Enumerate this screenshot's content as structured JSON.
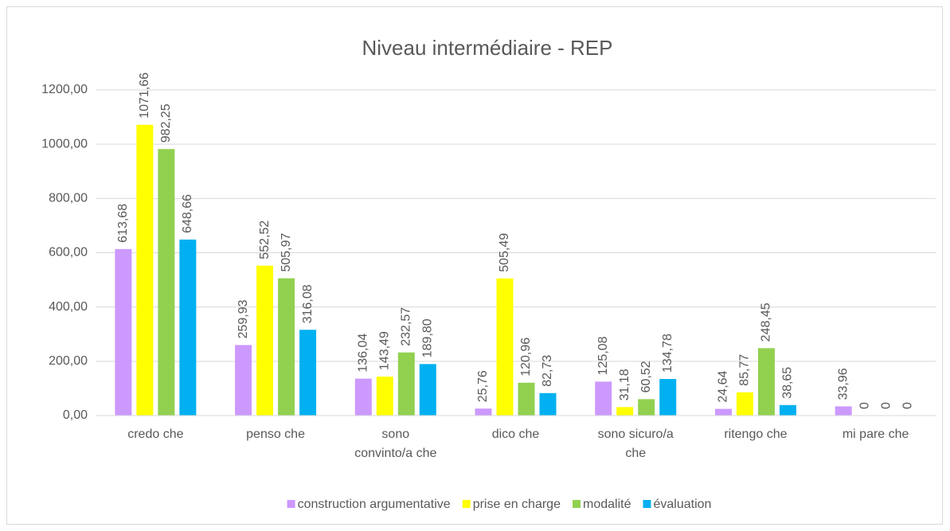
{
  "chart_data": {
    "type": "bar",
    "title": "Niveau intermédiaire - REP",
    "categories": [
      "credo che",
      "penso che",
      "sono convinto/a che",
      "dico che",
      "sono sicuro/a che",
      "ritengo che",
      "mi pare che"
    ],
    "series": [
      {
        "name": "construction argumentative",
        "color": "#cc99ff",
        "values": [
          613.68,
          259.93,
          136.04,
          25.76,
          125.08,
          24.64,
          33.96
        ],
        "value_labels": [
          "613,68",
          "259,93",
          "136,04",
          "25,76",
          "125,08",
          "24,64",
          "33,96"
        ]
      },
      {
        "name": "prise en charge",
        "color": "#ffff00",
        "values": [
          1071.66,
          552.52,
          143.49,
          505.49,
          31.18,
          85.77,
          0
        ],
        "value_labels": [
          "1071,66",
          "552,52",
          "143,49",
          "505,49",
          "31,18",
          "85,77",
          "0"
        ]
      },
      {
        "name": "modalité",
        "color": "#92d050",
        "values": [
          982.25,
          505.97,
          232.57,
          120.96,
          60.52,
          248.45,
          0
        ],
        "value_labels": [
          "982,25",
          "505,97",
          "232,57",
          "120,96",
          "60,52",
          "248,45",
          "0"
        ]
      },
      {
        "name": "évaluation",
        "color": "#00b0f0",
        "values": [
          648.66,
          316.08,
          189.8,
          82.73,
          134.78,
          38.65,
          0
        ],
        "value_labels": [
          "648,66",
          "316,08",
          "189,80",
          "82,73",
          "134,78",
          "38,65",
          "0"
        ]
      }
    ],
    "ylim": [
      0,
      1200
    ],
    "yticks": [
      {
        "value": 0,
        "label": "0,00"
      },
      {
        "value": 200,
        "label": "200,00"
      },
      {
        "value": 400,
        "label": "400,00"
      },
      {
        "value": 600,
        "label": "600,00"
      },
      {
        "value": 800,
        "label": "800,00"
      },
      {
        "value": 1000,
        "label": "1000,00"
      },
      {
        "value": 1200,
        "label": "1200,00"
      }
    ],
    "grid": true,
    "legend": "bottom"
  }
}
